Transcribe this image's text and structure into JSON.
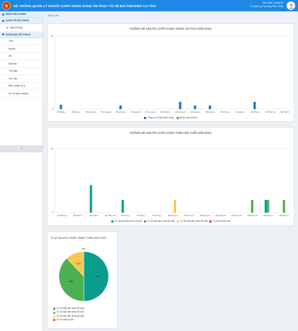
{
  "header": {
    "title": "HỆ THỐNG QUẢN LÝ NGƯỜI CHẤP HÀNH XONG ÁN PHẠT TÙ VỀ ĐỊA PHƯƠNG CƯ TRÚ",
    "greeting": "Xin chào: Quản trị",
    "unit": "Quản lý Phường Phú Thủy",
    "logo_icon": "police-emblem-icon",
    "avatar_icon": "user-avatar-icon"
  },
  "sidebar": {
    "sections": [
      {
        "label": "BẢNG ĐIỀU KHIỂN",
        "icon": "dashboard-icon",
        "items": []
      },
      {
        "label": "QUẢN TRỊ HỆ THỐNG",
        "icon": "settings-icon",
        "items": [
          {
            "label": "Người dùng"
          }
        ]
      },
      {
        "label": "DANH MỤC HỆ THỐNG",
        "icon": "list-icon",
        "items": [
          {
            "label": "Tỉnh"
          },
          {
            "label": "Huyện"
          },
          {
            "label": "Xã"
          },
          {
            "label": "Dân tộc"
          },
          {
            "label": "Tôn giáo"
          },
          {
            "label": "Học vấn"
          },
          {
            "label": "Biện pháp xử lý"
          },
          {
            "label": "Cơ sở giáo dưỡng"
          }
        ]
      }
    ],
    "collapse_icon": "chevron-left-icon"
  },
  "breadcrumb": "Trang chủ",
  "colors": {
    "blue": "#1e73be",
    "green": "#4caf50",
    "yellow": "#f9c74f",
    "red": "#e53935",
    "teal": "#0b9e8f"
  },
  "chart1": {
    "title": "THỐNG KÊ NGƯỜI CHẤP HÀNH XONG ÁN TÍCH NĂM 2021",
    "yticks": [
      "0",
      "10"
    ],
    "categories": [
      "Phường ...",
      "Phường ...",
      "Phường Ð...",
      "Phường Ð...",
      "Phường H...",
      "Phường P...",
      "Phường C...",
      "Phường K...",
      "Phường K...",
      "Phường L...",
      "Phường L...",
      "Phường L...",
      "Phường ...",
      "Xã Thiện...",
      "Xã Tiến Lợi",
      "Xã Tiến T..."
    ],
    "legend": [
      {
        "label": "Tổng số: Chấp hành xong",
        "color": "#1e73be"
      },
      {
        "label": "Được xóa án tích",
        "color": "#4caf50"
      }
    ]
  },
  "chart2": {
    "title": "THỐNG KÊ NGƯỜI CHẤP HÀNH THEO ĐỘ TUỔI NĂM 2021",
    "yticks": [
      "0",
      "10"
    ],
    "categories": [
      "Xã Phong...",
      "Xã Tiến T...",
      "Xã Thiện...",
      "Xã Tiến Lợi",
      "Phường ...",
      "Phường ...",
      "Phường ...",
      "Phường C...",
      "Phường T...",
      "Phường P...",
      "Phường P...",
      "Phường Đ...",
      "Phường S...",
      "Phường L...",
      "Phường L..."
    ],
    "legend": [
      {
        "label": "Từ 16 tuổi đến dưới 30 tuổi",
        "color": "#0b9e8f"
      },
      {
        "label": "Từ 30 tuổi đến dưới 45 tuổi",
        "color": "#4caf50"
      },
      {
        "label": "Từ 45 tuổi đến dưới 60 tuổi",
        "color": "#f9c74f"
      },
      {
        "label": "Từ 60 tuổi trở lên",
        "color": "#e53935"
      }
    ]
  },
  "chart3": {
    "title": "TỈ LỆ NGƯỜI CHẤP HÀNH THEO ĐỘ TUỔI",
    "legend": [
      {
        "label": "Từ 16 tuổi đến dưới 30 tuổi",
        "color": "#0b9e8f"
      },
      {
        "label": "Từ 30 tuổi đến dưới 45 tuổi",
        "color": "#4caf50"
      },
      {
        "label": "Từ 45 tuổi đến dưới 60 tuổi",
        "color": "#f9c74f"
      },
      {
        "label": "Từ 60 tuổi trở lên",
        "color": "#e53935"
      }
    ]
  },
  "chart_data": [
    {
      "type": "bar",
      "title": "THỐNG KÊ NGƯỜI CHẤP HÀNH XONG ÁN TÍCH NĂM 2021",
      "ylim": [
        0,
        10
      ],
      "categories": [
        "Phường ...",
        "Phường ...",
        "Phường Ð...",
        "Phường Ð...",
        "Phường H...",
        "Phường P...",
        "Phường C...",
        "Phường K...",
        "Phường K...",
        "Phường L...",
        "Phường L...",
        "Phường L...",
        "Phường ...",
        "Xã Thiện...",
        "Xã Tiến Lợi",
        "Xã Tiến T..."
      ],
      "series": [
        {
          "name": "Tổng số: Chấp hành xong",
          "values": [
            0.6,
            0,
            0,
            0,
            0.5,
            0,
            0,
            0,
            1,
            0.5,
            0.5,
            0,
            0,
            1,
            0,
            0
          ]
        },
        {
          "name": "Được xóa án tích",
          "values": [
            0,
            0,
            0,
            0,
            0,
            0,
            0,
            0,
            0,
            0,
            0,
            0,
            0,
            0,
            0,
            0
          ]
        }
      ],
      "legend": "bottom"
    },
    {
      "type": "bar",
      "title": "THỐNG KÊ NGƯỜI CHẤP HÀNH THEO ĐỘ TUỔI NĂM 2021",
      "ylim": [
        0,
        10
      ],
      "categories": [
        "Xã Phong...",
        "Xã Tiến T...",
        "Xã Thiện...",
        "Xã Tiến Lợi",
        "Phường ...",
        "Phường ...",
        "Phường ...",
        "Phường C...",
        "Phường T...",
        "Phường P...",
        "Phường P...",
        "Phường Đ...",
        "Phường S...",
        "Phường L...",
        "Phường L..."
      ],
      "series": [
        {
          "name": "Từ 16 tuổi đến dưới 30 tuổi",
          "values": [
            0,
            0,
            4.3,
            0,
            2,
            0,
            0,
            0,
            0,
            0,
            0,
            0,
            0,
            2,
            0
          ]
        },
        {
          "name": "Từ 30 tuổi đến dưới 45 tuổi",
          "values": [
            0,
            0,
            0,
            0,
            0,
            0,
            0,
            0,
            0,
            0,
            0,
            0,
            2,
            2,
            2
          ]
        },
        {
          "name": "Từ 45 tuổi đến dưới 60 tuổi",
          "values": [
            0,
            0,
            0,
            0,
            0,
            0,
            0,
            2,
            0,
            0,
            0,
            0,
            0,
            0,
            0
          ]
        },
        {
          "name": "Từ 60 tuổi trở lên",
          "values": [
            0,
            0,
            0,
            0,
            0,
            0,
            0,
            0,
            0,
            0,
            0,
            0,
            0,
            0,
            0
          ]
        }
      ],
      "legend": "bottom"
    },
    {
      "type": "pie",
      "title": "TỈ LỆ NGƯỜI CHẤP HÀNH THEO ĐỘ TUỔI",
      "categories": [
        "Từ 16 tuổi đến dưới 30 tuổi",
        "Từ 30 tuổi đến dưới 45 tuổi",
        "Từ 45 tuổi đến dưới 60 tuổi",
        "Từ 60 tuổi trở lên"
      ],
      "values": [
        50,
        38,
        12,
        0
      ],
      "labels": [
        "50%",
        "38%",
        "12%",
        "0%"
      ],
      "legend": "bottom-left"
    }
  ]
}
